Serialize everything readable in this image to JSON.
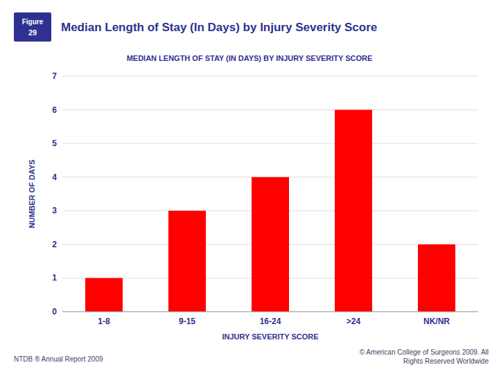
{
  "chart_data": {
    "type": "bar",
    "title": "Median Length of Stay (In Days) by Injury Severity Score",
    "subtitle": "MEDIAN LENGTH OF STAY (IN DAYS) BY INJURY SEVERITY SCORE",
    "xlabel": "INJURY SEVERITY SCORE",
    "ylabel": "NUMBER OF DAYS",
    "categories": [
      "1-8",
      "9-15",
      "16-24",
      ">24",
      "NK/NR"
    ],
    "values": [
      1,
      3,
      4,
      6,
      2
    ],
    "color": "#FF0000",
    "ylim": [
      0,
      7
    ],
    "yticks": [
      0,
      1,
      2,
      3,
      4,
      5,
      6,
      7
    ],
    "grid": true,
    "annotations": [
      "Figure",
      "29",
      "NTDB ® Annual Report 2009",
      "© American College of Surgeons 2009.  All\nRights Reserved Worldwide"
    ]
  }
}
